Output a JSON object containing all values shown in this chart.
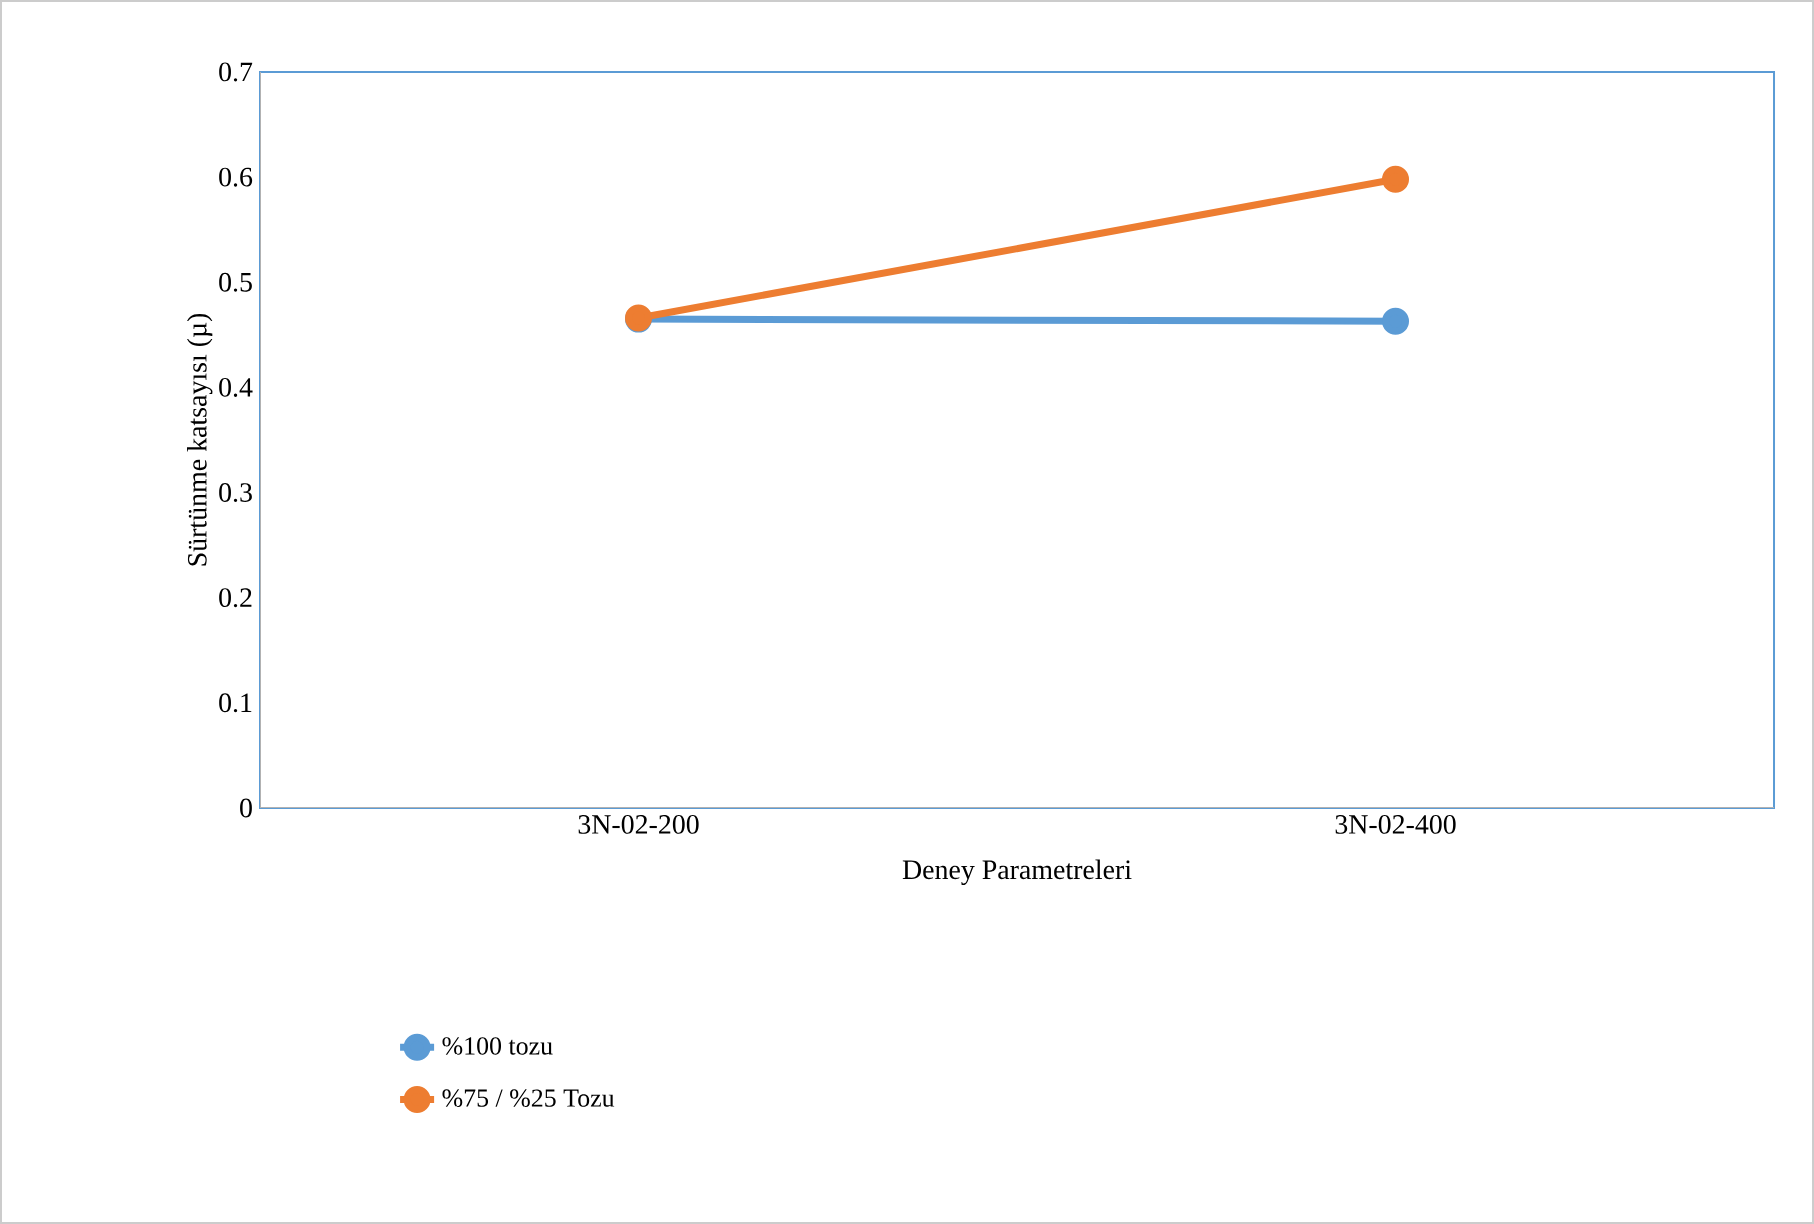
{
  "chart_data": {
    "type": "line",
    "xlabel": "Deney Parametreleri",
    "ylabel": "Sürtünme katsayısı (µ)",
    "categories": [
      "3N-02-200",
      "3N-02-400"
    ],
    "series": [
      {
        "name": "%100 tozu",
        "color": "#5b9bd5",
        "values": [
          0.465,
          0.463
        ]
      },
      {
        "name": "%75 / %25 Tozu",
        "color": "#ed7d31",
        "values": [
          0.466,
          0.598
        ]
      }
    ],
    "ylim": [
      0,
      0.7
    ],
    "yticks": [
      0,
      0.1,
      0.2,
      0.3,
      0.4,
      0.5,
      0.6,
      0.7
    ],
    "grid": false,
    "legend": "bottom",
    "marker": "circle",
    "line_style": "solid"
  }
}
